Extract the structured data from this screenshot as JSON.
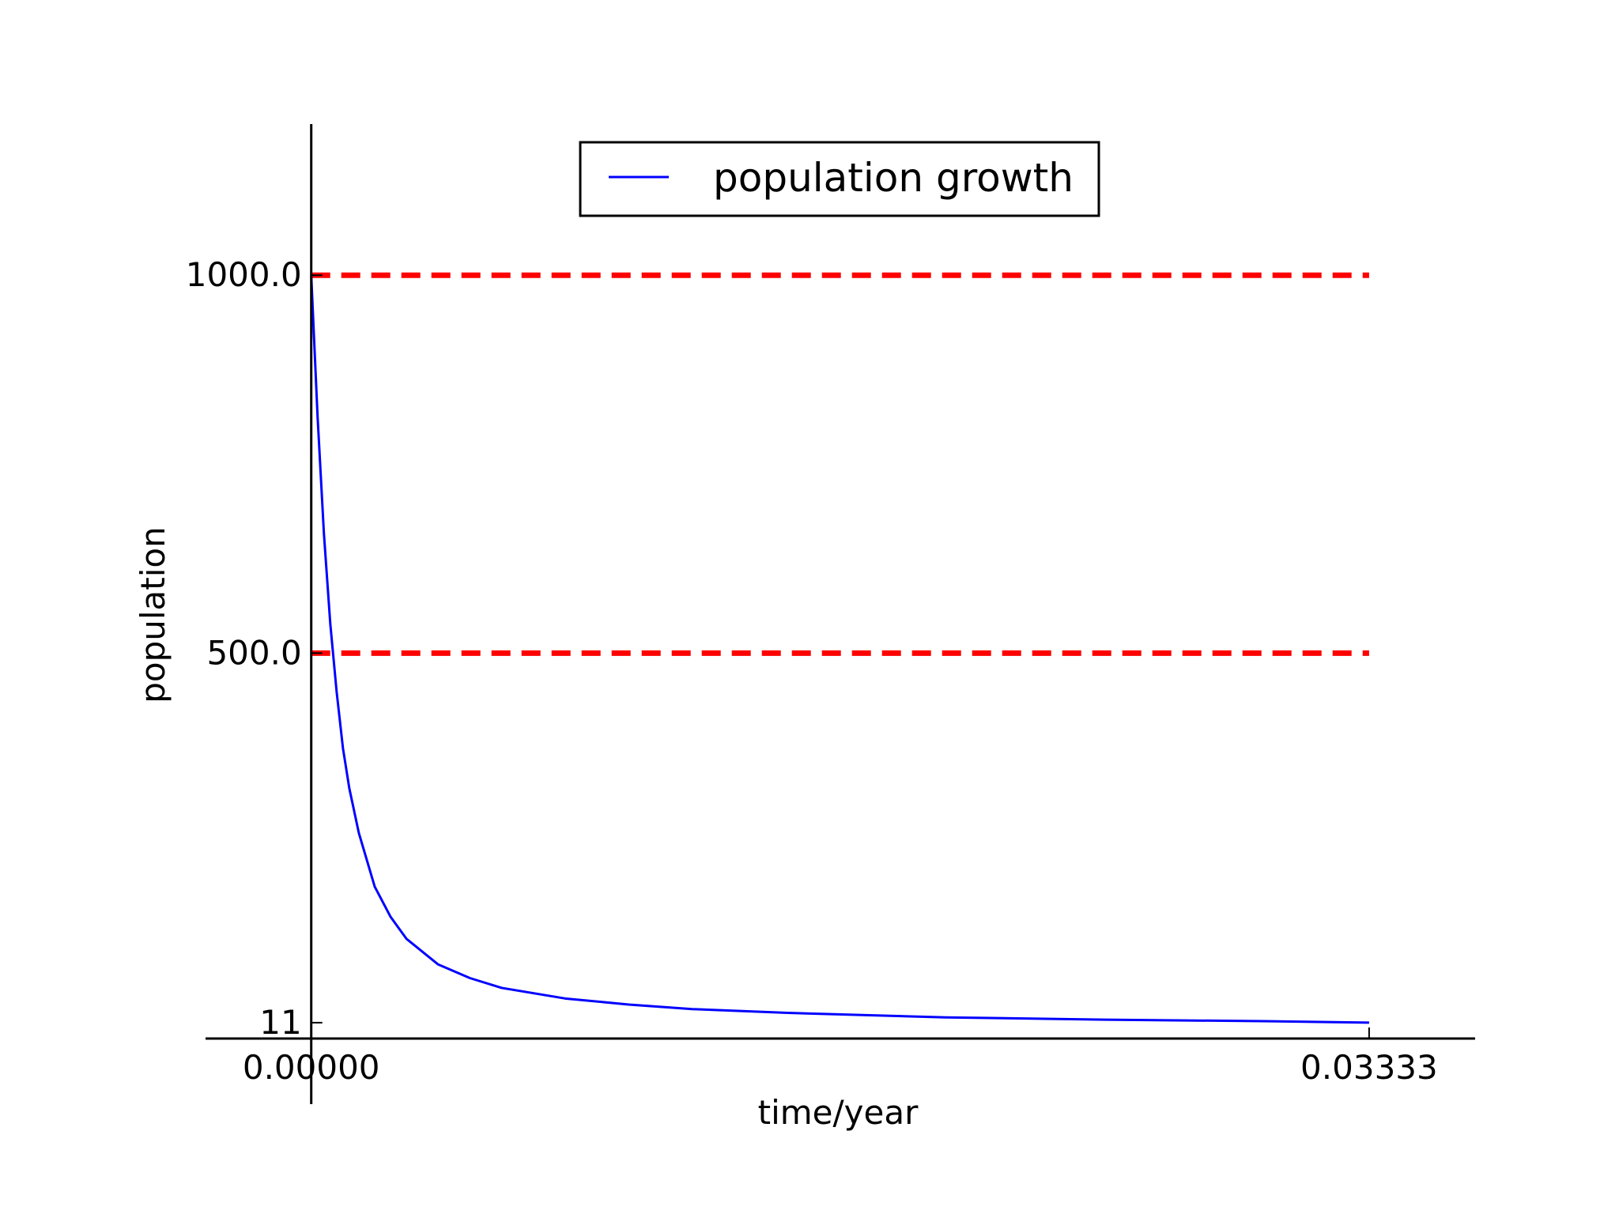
{
  "chart_data": {
    "type": "line",
    "xlabel": "time/year",
    "ylabel": "population",
    "xlim": [
      -0.00333,
      0.03667
    ],
    "ylim": [
      -10,
      1200
    ],
    "x_axis_at_y": -10,
    "y_axis_at_x": 0,
    "xticks": [
      {
        "value": 0,
        "label": "0.00000"
      },
      {
        "value": 0.03333,
        "label": "0.03333"
      }
    ],
    "yticks": [
      {
        "value": 11,
        "label": "11"
      },
      {
        "value": 500,
        "label": "500.0"
      },
      {
        "value": 1000,
        "label": "1000.0"
      }
    ],
    "grid": false,
    "legend": {
      "placement": "top-center",
      "entries": [
        "population growth"
      ]
    },
    "series": [
      {
        "name": "population growth",
        "color": "#0000ff",
        "style": "solid",
        "x": [
          0,
          0.0002,
          0.0004,
          0.0006,
          0.0008,
          0.001,
          0.0012,
          0.0015,
          0.002,
          0.0025,
          0.003,
          0.004,
          0.005,
          0.006,
          0.008,
          0.01,
          0.012,
          0.015,
          0.02,
          0.025,
          0.03,
          0.03333
        ],
        "y": [
          1000,
          813,
          658,
          539,
          449,
          374,
          321,
          262,
          191,
          151,
          122,
          88,
          70,
          57,
          43,
          35,
          29,
          24,
          18,
          15,
          13,
          11
        ]
      }
    ],
    "reference_lines": [
      {
        "y": 1000,
        "color": "#ff0000",
        "style": "dashed"
      },
      {
        "y": 500,
        "color": "#ff0000",
        "style": "dashed"
      }
    ]
  }
}
